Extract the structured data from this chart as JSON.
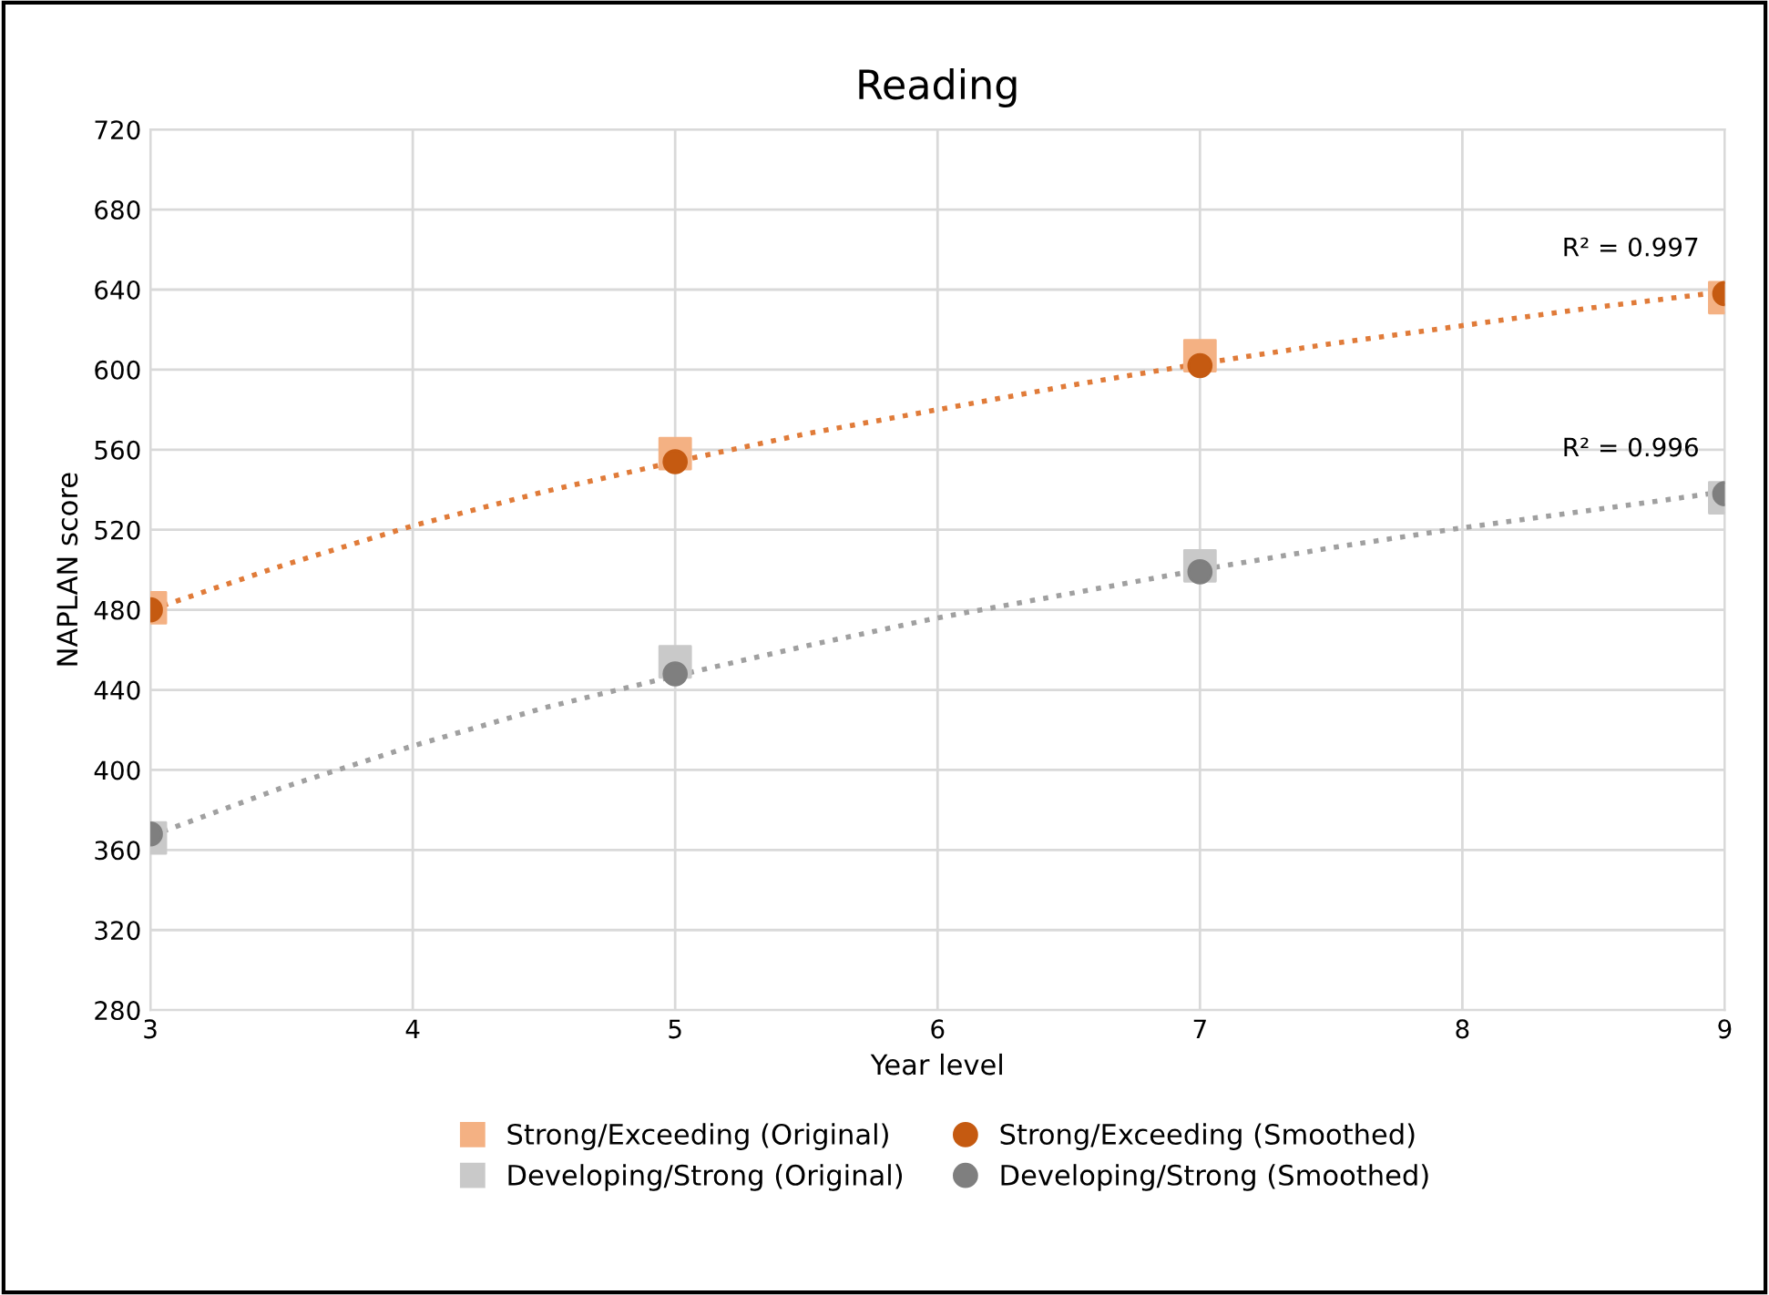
{
  "chart_data": {
    "type": "scatter",
    "title": "Reading",
    "xlabel": "Year level",
    "ylabel": "NAPLAN score",
    "xlim": [
      3,
      9
    ],
    "xticks": [
      3,
      4,
      5,
      6,
      7,
      8,
      9
    ],
    "ylim": [
      280,
      720
    ],
    "yticks": [
      280,
      320,
      360,
      400,
      440,
      480,
      520,
      560,
      600,
      640,
      680,
      720
    ],
    "grid": true,
    "legend": "bottom",
    "series": [
      {
        "name": "Strong/Exceeding (Original)",
        "marker": "square",
        "color": "#f4b183",
        "x": [
          3,
          5,
          7,
          9
        ],
        "values": [
          481,
          558,
          607,
          636
        ]
      },
      {
        "name": "Strong/Exceeding (Smoothed)",
        "marker": "circle",
        "color": "#c55a11",
        "x": [
          3,
          5,
          7,
          9
        ],
        "values": [
          480,
          554,
          602,
          638
        ]
      },
      {
        "name": "Developing/Strong (Original)",
        "marker": "square",
        "color": "#c9c9c9",
        "x": [
          3,
          5,
          7,
          9
        ],
        "values": [
          366,
          454,
          502,
          536
        ]
      },
      {
        "name": "Developing/Strong (Smoothed)",
        "marker": "circle",
        "color": "#7f7f7f",
        "x": [
          3,
          5,
          7,
          9
        ],
        "values": [
          368,
          448,
          499,
          538
        ]
      },
      {
        "type": "line",
        "line_style": "dotted",
        "marker": "none",
        "color": "#e07b39",
        "x": [
          3,
          3.5,
          4,
          4.5,
          5,
          5.5,
          6,
          6.5,
          7,
          7.5,
          8,
          8.5,
          9
        ],
        "values": [
          480,
          502,
          522,
          539,
          554,
          568,
          580,
          592,
          603,
          613,
          622,
          631,
          639
        ]
      },
      {
        "type": "line",
        "line_style": "dotted",
        "marker": "none",
        "color": "#a0a0a0",
        "x": [
          3,
          3.5,
          4,
          4.5,
          5,
          5.5,
          6,
          6.5,
          7,
          7.5,
          8,
          8.5,
          9
        ],
        "values": [
          367,
          391,
          412,
          431,
          447,
          462,
          476,
          488,
          500,
          511,
          521,
          530,
          539
        ]
      }
    ],
    "annotations": [
      "R² = 0.997",
      "R² = 0.996"
    ]
  }
}
